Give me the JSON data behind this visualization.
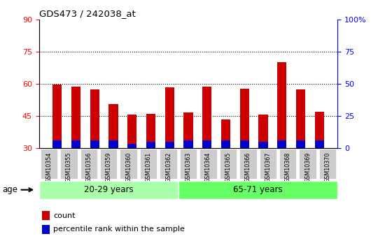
{
  "title": "GDS473 / 242038_at",
  "samples": [
    "GSM10354",
    "GSM10355",
    "GSM10356",
    "GSM10359",
    "GSM10360",
    "GSM10361",
    "GSM10362",
    "GSM10363",
    "GSM10364",
    "GSM10365",
    "GSM10366",
    "GSM10367",
    "GSM10368",
    "GSM10369",
    "GSM10370"
  ],
  "count_values": [
    59.5,
    58.8,
    57.5,
    50.5,
    45.5,
    46.0,
    58.3,
    46.5,
    58.6,
    43.5,
    57.8,
    45.5,
    70.0,
    57.5,
    47.0
  ],
  "percentile_base": [
    30.0,
    30.0,
    30.0,
    30.0,
    30.0,
    30.0,
    30.0,
    30.0,
    30.0,
    30.0,
    30.0,
    30.0,
    30.0,
    30.0,
    30.0
  ],
  "percentile_values": [
    3.5,
    3.5,
    3.5,
    3.5,
    2.0,
    3.0,
    3.0,
    3.5,
    3.5,
    3.5,
    3.5,
    3.0,
    3.5,
    3.5,
    3.5
  ],
  "group1_label": "20-29 years",
  "group2_label": "65-71 years",
  "group1_count": 7,
  "group2_count": 8,
  "ylim_left": [
    30,
    90
  ],
  "ylim_right": [
    0,
    100
  ],
  "yticks_left": [
    30,
    45,
    60,
    75,
    90
  ],
  "yticks_right": [
    0,
    25,
    50,
    75,
    100
  ],
  "ytick_labels_right": [
    "0",
    "25",
    "50",
    "75",
    "100%"
  ],
  "bar_color_red": "#cc0000",
  "bar_color_blue": "#0000cc",
  "bg_color_plot": "#ffffff",
  "bg_color_group1": "#aaffaa",
  "bg_color_group2": "#66ff66",
  "tick_label_bg": "#cccccc",
  "grid_color": "#000000",
  "legend_red": "count",
  "legend_blue": "percentile rank within the sample",
  "bar_width": 0.5,
  "grid_lines": [
    45,
    60,
    75
  ]
}
